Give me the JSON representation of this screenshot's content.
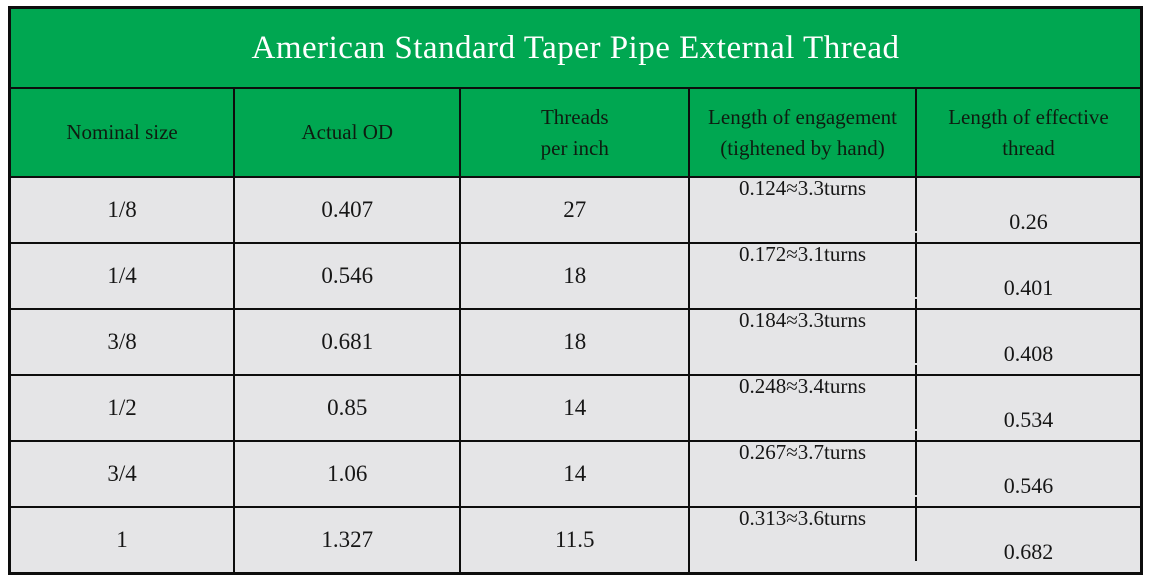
{
  "colors": {
    "header_green": "#00a751",
    "cell_gray": "#e5e5e7",
    "border_black": "#0d0d0d",
    "title_text": "#ffffff",
    "body_text": "#161616"
  },
  "chart_data": {
    "type": "table",
    "title": "American Standard Taper Pipe External Thread",
    "columns": [
      "Nominal size",
      "Actual OD",
      "Threads\nper inch",
      "Length of engagement\n(tightened by hand)",
      "Length of effective\nthread"
    ],
    "rows": [
      [
        "1/8",
        "0.407",
        "27",
        "0.124≈3.3turns",
        "0.26"
      ],
      [
        "1/4",
        "0.546",
        "18",
        "0.172≈3.1turns",
        "0.401"
      ],
      [
        "3/8",
        "0.681",
        "18",
        "0.184≈3.3turns",
        "0.408"
      ],
      [
        "1/2",
        "0.85",
        "14",
        "0.248≈3.4turns",
        "0.534"
      ],
      [
        "3/4",
        "1.06",
        "14",
        "0.267≈3.7turns",
        "0.546"
      ],
      [
        "1",
        "1.327",
        "11.5",
        "0.313≈3.6turns",
        "0.682"
      ]
    ]
  }
}
